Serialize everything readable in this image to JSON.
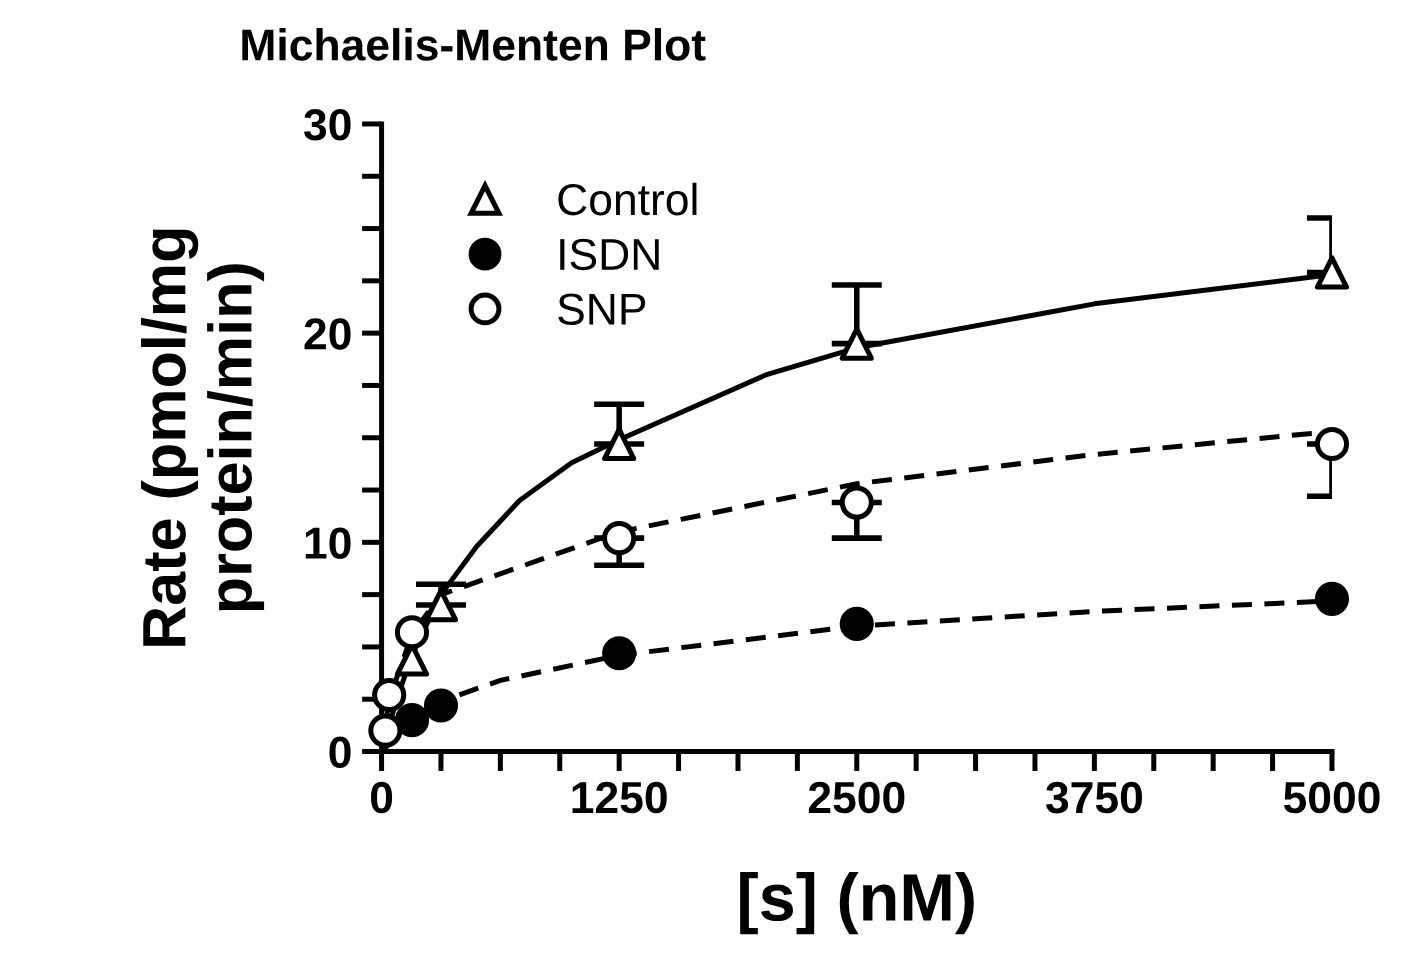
{
  "chart_data": {
    "type": "scatter",
    "title": "Michaelis-Menten Plot",
    "xlabel": "[s] (nM)",
    "ylabel": "Rate (pmol/mg\nprotein/min)",
    "xlim": [
      0,
      5000
    ],
    "ylim": [
      0,
      30
    ],
    "xticks": [
      0,
      {
        "value": 312.5,
        "label": null
      },
      {
        "value": 625,
        "label": null
      },
      {
        "value": 937.5,
        "label": null
      },
      1250,
      {
        "value": 1562.5,
        "label": null
      },
      {
        "value": 1875,
        "label": null
      },
      {
        "value": 2187.5,
        "label": null
      },
      2500,
      {
        "value": 2812.5,
        "label": null
      },
      {
        "value": 3125,
        "label": null
      },
      {
        "value": 3437.5,
        "label": null
      },
      3750,
      {
        "value": 4062.5,
        "label": null
      },
      {
        "value": 4375,
        "label": null
      },
      {
        "value": 4687.5,
        "label": null
      },
      5000
    ],
    "yticks": [
      0,
      {
        "value": 2.5,
        "label": null
      },
      {
        "value": 5,
        "label": null
      },
      {
        "value": 7.5,
        "label": null
      },
      10,
      {
        "value": 12.5,
        "label": null
      },
      {
        "value": 15,
        "label": null
      },
      {
        "value": 17.5,
        "label": null
      },
      20,
      {
        "value": 22.5,
        "label": null
      },
      {
        "value": 25,
        "label": null
      },
      {
        "value": 27.5,
        "label": null
      },
      30
    ],
    "grid": false,
    "legend": "top left",
    "series": [
      {
        "type": "line",
        "color": "#000000",
        "line_style": "solid",
        "marker": "none",
        "x": [
          0,
          80,
          160,
          312.5,
          500,
          726,
          1000,
          1250,
          2021,
          2500,
          3750,
          5000
        ],
        "values": [
          0,
          2.5,
          4.6,
          7.5,
          9.8,
          12.0,
          13.8,
          14.9,
          18.0,
          19.3,
          21.4,
          22.8
        ]
      },
      {
        "type": "line",
        "color": "#000000",
        "line_style": "dashed",
        "marker": "none",
        "x": [
          0,
          40,
          160,
          312.5,
          1250,
          2500,
          3750,
          5000
        ],
        "values": [
          0,
          2.5,
          5.6,
          7.5,
          10.5,
          12.8,
          14.2,
          15.3
        ]
      },
      {
        "type": "line",
        "color": "#000000",
        "line_style": "dashed",
        "marker": "none",
        "x": [
          0,
          160,
          312.5,
          625,
          1250,
          2500,
          3750,
          5000
        ],
        "values": [
          0,
          1.4,
          2.4,
          3.4,
          4.6,
          6.0,
          6.7,
          7.2
        ]
      },
      {
        "name": "Control",
        "color": "#000000",
        "colors": [
          "#ffffff",
          "#ffffff",
          "#ffffff",
          "#ffffff",
          "#ffffff"
        ],
        "marker": "triangle",
        "x": [
          160,
          312.5,
          1250,
          2500,
          5000
        ],
        "values": [
          4.4,
          7.0,
          14.7,
          19.5,
          22.9
        ],
        "errors": [
          null,
          [
            7.0,
            8.0
          ],
          [
            14.7,
            16.6
          ],
          [
            19.5,
            22.3
          ],
          [
            22.9,
            25.5
          ]
        ]
      },
      {
        "name": "ISDN",
        "color": "#000000",
        "colors": [
          "#000000",
          "#000000",
          "#000000",
          "#000000",
          "#000000"
        ],
        "marker": "circle",
        "x": [
          160,
          312.5,
          1250,
          2500,
          5000
        ],
        "values": [
          1.5,
          2.2,
          4.7,
          6.1,
          7.3
        ]
      },
      {
        "name": "SNP",
        "color": "#000000",
        "colors": [
          "#ffffff",
          "#ffffff",
          "#ffffff",
          "#ffffff",
          "#ffffff",
          "#ffffff"
        ],
        "marker": "circle",
        "x": [
          20,
          40,
          160,
          1250,
          2500,
          5000
        ],
        "values": [
          1.0,
          2.7,
          5.7,
          10.2,
          11.9,
          14.7
        ],
        "errors": [
          null,
          null,
          null,
          [
            8.9,
            10.2
          ],
          [
            10.2,
            11.9
          ],
          [
            12.2,
            14.7
          ]
        ]
      }
    ]
  }
}
